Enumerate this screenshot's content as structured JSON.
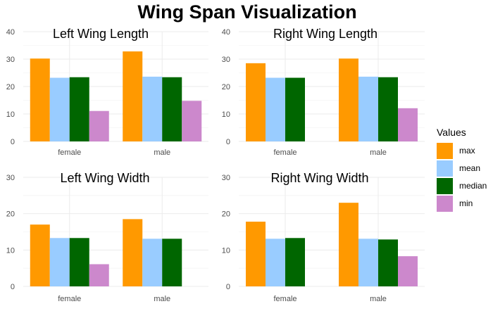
{
  "chart_data": {
    "type": "bar",
    "title": "Wing Span Visualization",
    "legend": {
      "title": "Values",
      "position": "right",
      "entries": [
        {
          "name": "max",
          "color": "#FF9900"
        },
        {
          "name": "mean",
          "color": "#99CCFF"
        },
        {
          "name": "median",
          "color": "#006600"
        },
        {
          "name": "min",
          "color": "#CC88CC"
        }
      ]
    },
    "grid": true,
    "panels": [
      {
        "title": "Left Wing Length",
        "categories": [
          "female",
          "male"
        ],
        "ylim": [
          0,
          40
        ],
        "yticks": [
          0,
          10,
          20,
          30,
          40
        ],
        "series": [
          {
            "name": "max",
            "values": [
              30.2,
              32.8
            ]
          },
          {
            "name": "mean",
            "values": [
              23.2,
              23.6
            ]
          },
          {
            "name": "median",
            "values": [
              23.4,
              23.4
            ]
          },
          {
            "name": "min",
            "values": [
              11.1,
              14.8
            ]
          }
        ]
      },
      {
        "title": "Right Wing Length",
        "categories": [
          "female",
          "male"
        ],
        "ylim": [
          0,
          40
        ],
        "yticks": [
          0,
          10,
          20,
          30,
          40
        ],
        "series": [
          {
            "name": "max",
            "values": [
              28.5,
              30.2
            ]
          },
          {
            "name": "mean",
            "values": [
              23.2,
              23.6
            ]
          },
          {
            "name": "median",
            "values": [
              23.2,
              23.4
            ]
          },
          {
            "name": "min",
            "values": [
              null,
              12.1
            ]
          }
        ]
      },
      {
        "title": "Left Wing Width",
        "categories": [
          "female",
          "male"
        ],
        "ylim": [
          0,
          30
        ],
        "yticks": [
          0,
          10,
          20,
          30
        ],
        "series": [
          {
            "name": "max",
            "values": [
              17.0,
              18.5
            ]
          },
          {
            "name": "mean",
            "values": [
              13.3,
              13.1
            ]
          },
          {
            "name": "median",
            "values": [
              13.3,
              13.1
            ]
          },
          {
            "name": "min",
            "values": [
              6.1,
              null
            ]
          }
        ]
      },
      {
        "title": "Right Wing Width",
        "categories": [
          "female",
          "male"
        ],
        "ylim": [
          0,
          30
        ],
        "yticks": [
          0,
          10,
          20,
          30
        ],
        "series": [
          {
            "name": "max",
            "values": [
              17.8,
              23.0
            ]
          },
          {
            "name": "mean",
            "values": [
              13.1,
              13.1
            ]
          },
          {
            "name": "median",
            "values": [
              13.3,
              12.9
            ]
          },
          {
            "name": "min",
            "values": [
              null,
              8.3
            ]
          }
        ]
      }
    ]
  }
}
